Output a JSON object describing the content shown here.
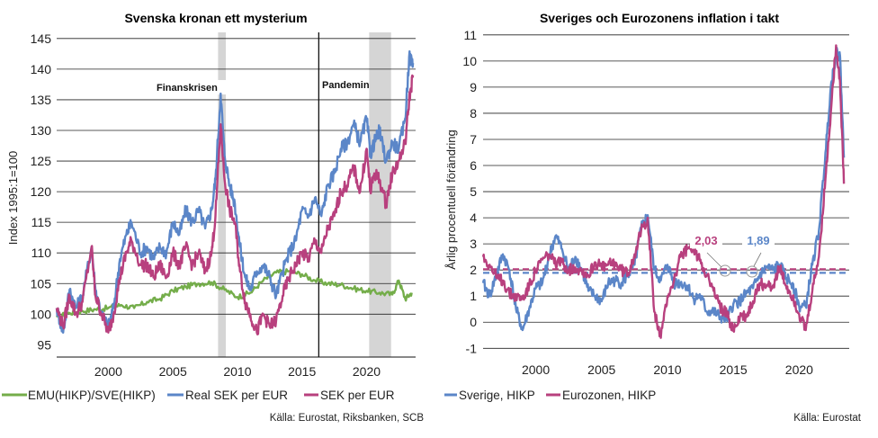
{
  "charts": [
    {
      "title": "Svenska kronan ett mysterium",
      "ylabel": "Index 1995:1=100",
      "yticks": [
        "145",
        "140",
        "135",
        "130",
        "125",
        "120",
        "115",
        "110",
        "105",
        "100",
        "95"
      ],
      "xticks": [
        "2000",
        "2005",
        "2010",
        "2015",
        "2020"
      ],
      "annotations": {
        "crisis": "Finanskrisen",
        "pandemic": "Pandemin"
      },
      "legend": [
        "EMU(HIKP)/SVE(HIKP)",
        "Real SEK per EUR",
        "SEK per EUR"
      ],
      "source": "Källa: Eurostat, Riksbanken, SCB"
    },
    {
      "title": "Sveriges och Eurozonens inflation i takt",
      "ylabel": "Årlig procentuell förändring",
      "yticks": [
        "11",
        "10",
        "9",
        "8",
        "7",
        "6",
        "5",
        "4",
        "3",
        "2",
        "1",
        "0",
        "-1"
      ],
      "xticks": [
        "2000",
        "2005",
        "2010",
        "2015",
        "2020"
      ],
      "annotations": {
        "ez_avg": "2,03",
        "se_avg": "1,89"
      },
      "legend": [
        "Sverige, HIKP",
        "Eurozonen, HIKP"
      ],
      "source": "Källa: Eurostat"
    }
  ],
  "colors": {
    "green": "#74ad4a",
    "blue": "#5b86c8",
    "magenta": "#b8407e",
    "shade": "#d5d5d5",
    "grid": "#222222"
  },
  "chart_data": [
    {
      "type": "line",
      "title": "Svenska kronan ett mysterium",
      "ylabel": "Index 1995:1=100",
      "xlim": [
        1996.0,
        2023.8
      ],
      "ylim": [
        93,
        146
      ],
      "shaded_periods": [
        [
          2008.5,
          2009.1
        ],
        [
          2020.2,
          2021.9
        ]
      ],
      "vertical_lines": [
        2016.3
      ],
      "series": [
        {
          "name": "EMU(HIKP)/SVE(HIKP)",
          "x": [
            1996.0,
            1997,
            1998,
            1999,
            2000,
            2001,
            2002,
            2003,
            2004,
            2005,
            2006,
            2007,
            2008,
            2009,
            2010,
            2011,
            2012,
            2013,
            2014,
            2015,
            2016,
            2017,
            2018,
            2019,
            2020,
            2021,
            2022,
            2022.5,
            2023,
            2023.5
          ],
          "y": [
            99.5,
            100.2,
            100.5,
            100.8,
            101.0,
            101.5,
            101.0,
            102.0,
            102.5,
            103.8,
            104.5,
            105.0,
            105.2,
            104.0,
            102.8,
            103.5,
            105.5,
            106.8,
            107.0,
            106.5,
            105.5,
            105.0,
            104.8,
            104.2,
            103.8,
            103.5,
            103.2,
            105.5,
            102.5,
            103.5
          ]
        },
        {
          "name": "Real SEK per EUR",
          "x": [
            1996.0,
            1996.5,
            1997,
            1997.5,
            1998,
            1998.7,
            1999,
            1999.5,
            2000,
            2000.4,
            2000.9,
            2001.4,
            2001.8,
            2002.5,
            2003,
            2003.5,
            2004,
            2004.5,
            2005,
            2005.5,
            2006,
            2006.5,
            2007,
            2007.5,
            2008,
            2008.3,
            2008.7,
            2009.0,
            2009.4,
            2009.8,
            2010.2,
            2010.6,
            2011,
            2011.5,
            2012,
            2012.5,
            2013,
            2013.5,
            2014,
            2014.5,
            2015,
            2015.5,
            2016,
            2016.5,
            2017,
            2017.5,
            2018,
            2018.5,
            2019,
            2019.5,
            2020,
            2020.3,
            2020.6,
            2021,
            2021.5,
            2022,
            2022.5,
            2023,
            2023.3,
            2023.6
          ],
          "y": [
            101,
            97,
            104,
            101,
            103,
            111,
            104,
            100,
            98,
            101,
            109,
            113,
            115,
            110,
            111,
            109,
            111,
            110,
            115,
            113,
            117,
            115,
            117,
            114,
            117,
            122,
            136,
            126,
            121,
            118,
            111,
            106,
            104,
            107,
            108,
            106,
            103,
            107,
            110,
            112,
            117,
            116,
            119,
            116,
            121,
            123,
            127,
            128,
            131,
            128,
            132,
            126,
            128,
            130,
            125,
            128,
            127,
            132,
            142,
            141
          ]
        },
        {
          "name": "SEK per EUR",
          "x": [
            1996.0,
            1996.5,
            1997,
            1997.5,
            1998,
            1998.7,
            1999,
            1999.5,
            2000,
            2000.4,
            2000.9,
            2001.4,
            2001.8,
            2002.5,
            2003,
            2003.5,
            2004,
            2004.5,
            2005,
            2005.5,
            2006,
            2006.5,
            2007,
            2007.5,
            2008,
            2008.3,
            2008.7,
            2009.0,
            2009.4,
            2009.8,
            2010.2,
            2010.6,
            2011,
            2011.5,
            2012,
            2012.5,
            2013,
            2013.5,
            2014,
            2014.5,
            2015,
            2015.5,
            2016,
            2016.5,
            2017,
            2017.5,
            2018,
            2018.5,
            2019,
            2019.5,
            2020,
            2020.3,
            2020.6,
            2021,
            2021.5,
            2022,
            2022.5,
            2023,
            2023.3,
            2023.6
          ],
          "y": [
            101,
            98,
            103,
            100,
            102,
            111,
            103,
            100,
            97,
            100,
            106,
            110,
            112,
            108,
            108,
            106,
            108,
            106,
            110,
            108,
            111,
            108,
            110,
            107,
            110,
            116,
            131,
            122,
            117,
            115,
            107,
            102,
            100,
            97,
            100,
            98,
            99,
            103,
            106,
            108,
            110,
            109,
            112,
            110,
            114,
            116,
            120,
            121,
            124,
            120,
            127,
            120,
            123,
            122,
            118,
            123,
            125,
            128,
            135,
            139
          ]
        }
      ]
    },
    {
      "type": "line",
      "title": "Sveriges och Eurozonens inflation i takt",
      "ylabel": "Årlig procentuell förändring",
      "xlim": [
        1996.0,
        2023.8
      ],
      "ylim": [
        -1.3,
        11.2
      ],
      "reference_lines": [
        {
          "value": 2.03,
          "label": "2,03",
          "series": "Eurozonen, HIKP"
        },
        {
          "value": 1.89,
          "label": "1,89",
          "series": "Sverige, HIKP"
        }
      ],
      "series": [
        {
          "name": "Sverige, HIKP",
          "x": [
            1996.0,
            1996.5,
            1997,
            1997.5,
            1998,
            1998.5,
            1999,
            1999.5,
            2000,
            2000.5,
            2001,
            2001.5,
            2002,
            2002.5,
            2003,
            2003.5,
            2004,
            2004.5,
            2005,
            2005.5,
            2006,
            2006.5,
            2007,
            2007.5,
            2008,
            2008.5,
            2009,
            2009.5,
            2010,
            2010.5,
            2011,
            2011.5,
            2012,
            2012.5,
            2013,
            2013.5,
            2014,
            2014.5,
            2015,
            2015.5,
            2016,
            2016.5,
            2017,
            2017.5,
            2018,
            2018.5,
            2019,
            2019.5,
            2020,
            2020.5,
            2021,
            2021.5,
            2022,
            2022.4,
            2022.8,
            2023.1,
            2023.4
          ],
          "y": [
            1.5,
            1.0,
            1.8,
            2.6,
            2.0,
            0.5,
            -0.3,
            0.5,
            1.3,
            1.5,
            2.5,
            3.3,
            2.8,
            2.0,
            2.5,
            2.0,
            1.2,
            1.0,
            0.8,
            1.5,
            1.6,
            1.5,
            1.8,
            2.2,
            3.6,
            4.1,
            2.0,
            1.6,
            2.2,
            1.5,
            1.5,
            1.4,
            0.9,
            1.0,
            0.4,
            0.4,
            0.2,
            0.1,
            0.7,
            0.8,
            1.1,
            1.3,
            1.8,
            2.1,
            2.0,
            2.2,
            1.7,
            1.5,
            0.6,
            0.6,
            2.2,
            3.5,
            6.5,
            9.0,
            10.3,
            10.2,
            6.3
          ]
        },
        {
          "name": "Eurozonen, HIKP",
          "x": [
            1996.0,
            1996.5,
            1997,
            1997.5,
            1998,
            1998.5,
            1999,
            1999.5,
            2000,
            2000.5,
            2001,
            2001.5,
            2002,
            2002.5,
            2003,
            2003.5,
            2004,
            2004.5,
            2005,
            2005.5,
            2006,
            2006.5,
            2007,
            2007.5,
            2008,
            2008.5,
            2009,
            2009.5,
            2010,
            2010.5,
            2011,
            2011.5,
            2012,
            2012.5,
            2013,
            2013.5,
            2014,
            2014.5,
            2015,
            2015.5,
            2016,
            2016.5,
            2017,
            2017.5,
            2018,
            2018.5,
            2019,
            2019.5,
            2020,
            2020.5,
            2021,
            2021.5,
            2022,
            2022.4,
            2022.8,
            2023.1,
            2023.4
          ],
          "y": [
            2.5,
            2.2,
            1.7,
            1.6,
            1.1,
            1.0,
            0.9,
            1.4,
            2.0,
            2.4,
            2.6,
            2.2,
            2.3,
            2.0,
            2.1,
            2.0,
            1.8,
            2.3,
            2.1,
            2.2,
            2.3,
            2.0,
            1.9,
            2.6,
            3.5,
            4.0,
            0.4,
            -0.6,
            1.0,
            1.6,
            2.5,
            2.8,
            2.7,
            2.4,
            1.8,
            1.2,
            0.6,
            0.3,
            -0.3,
            0.2,
            0.2,
            0.8,
            1.5,
            1.4,
            1.4,
            2.1,
            1.4,
            1.0,
            0.3,
            -0.3,
            1.2,
            2.5,
            5.5,
            8.0,
            10.6,
            9.2,
            5.3
          ]
        }
      ]
    }
  ]
}
